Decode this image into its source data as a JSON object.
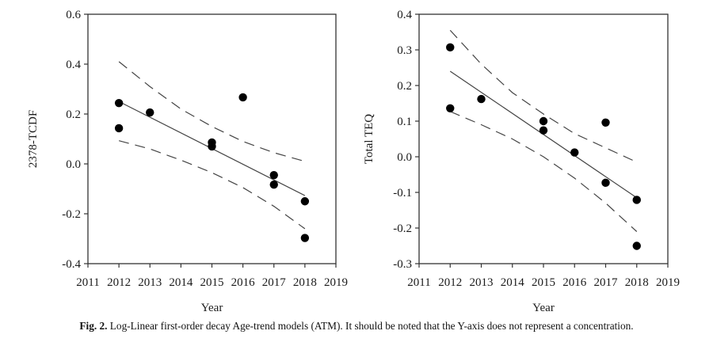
{
  "caption": {
    "label": "Fig. 2.",
    "text": " Log-Linear first-order decay Age-trend models (ATM). It should be noted that the Y-axis does not represent a concentration."
  },
  "chart_data": [
    {
      "type": "scatter",
      "title": "",
      "xlabel": "Year",
      "ylabel": "2378-TCDF",
      "xlim": [
        2011,
        2019
      ],
      "ylim": [
        -0.4,
        0.6
      ],
      "xticks": [
        2011,
        2012,
        2013,
        2014,
        2015,
        2016,
        2017,
        2018,
        2019
      ],
      "yticks": [
        -0.4,
        -0.2,
        0.0,
        0.2,
        0.4,
        0.6
      ],
      "ytick_labels": [
        "-0.4",
        "-0.2",
        "0.0",
        "0.2",
        "0.4",
        "0.6"
      ],
      "grid": false,
      "points": [
        {
          "x": 2012,
          "y": 0.244
        },
        {
          "x": 2012,
          "y": 0.143
        },
        {
          "x": 2013,
          "y": 0.206
        },
        {
          "x": 2015,
          "y": 0.086
        },
        {
          "x": 2015,
          "y": 0.07
        },
        {
          "x": 2016,
          "y": 0.267
        },
        {
          "x": 2017,
          "y": -0.045
        },
        {
          "x": 2017,
          "y": -0.083
        },
        {
          "x": 2018,
          "y": -0.15
        },
        {
          "x": 2018,
          "y": -0.297
        }
      ],
      "regression": {
        "x": [
          2012,
          2018
        ],
        "y": [
          0.25,
          -0.127
        ]
      },
      "ci_upper": {
        "x": [
          2012,
          2013,
          2014,
          2015,
          2016,
          2017,
          2018
        ],
        "y": [
          0.41,
          0.31,
          0.22,
          0.15,
          0.09,
          0.045,
          0.01
        ]
      },
      "ci_lower": {
        "x": [
          2012,
          2013,
          2014,
          2015,
          2016,
          2017,
          2018
        ],
        "y": [
          0.093,
          0.06,
          0.015,
          -0.035,
          -0.095,
          -0.17,
          -0.26
        ]
      }
    },
    {
      "type": "scatter",
      "title": "",
      "xlabel": "Year",
      "ylabel": "Total TEQ",
      "xlim": [
        2011,
        2019
      ],
      "ylim": [
        -0.3,
        0.4
      ],
      "xticks": [
        2011,
        2012,
        2013,
        2014,
        2015,
        2016,
        2017,
        2018,
        2019
      ],
      "yticks": [
        -0.3,
        -0.2,
        -0.1,
        0.0,
        0.1,
        0.2,
        0.3,
        0.4
      ],
      "ytick_labels": [
        "-0.3",
        "-0.2",
        "-0.1",
        "0.0",
        "0.1",
        "0.2",
        "0.3",
        "0.4"
      ],
      "grid": false,
      "points": [
        {
          "x": 2012,
          "y": 0.307
        },
        {
          "x": 2012,
          "y": 0.136
        },
        {
          "x": 2013,
          "y": 0.162
        },
        {
          "x": 2015,
          "y": 0.1
        },
        {
          "x": 2015,
          "y": 0.074
        },
        {
          "x": 2016,
          "y": 0.012
        },
        {
          "x": 2017,
          "y": 0.096
        },
        {
          "x": 2017,
          "y": -0.073
        },
        {
          "x": 2018,
          "y": -0.121
        },
        {
          "x": 2018,
          "y": -0.25
        }
      ],
      "regression": {
        "x": [
          2012,
          2018
        ],
        "y": [
          0.24,
          -0.115
        ]
      },
      "ci_upper": {
        "x": [
          2012,
          2013,
          2014,
          2015,
          2016,
          2017,
          2018
        ],
        "y": [
          0.355,
          0.26,
          0.18,
          0.12,
          0.065,
          0.025,
          -0.015
        ]
      },
      "ci_lower": {
        "x": [
          2012,
          2013,
          2014,
          2015,
          2016,
          2017,
          2018
        ],
        "y": [
          0.127,
          0.09,
          0.05,
          0.0,
          -0.06,
          -0.13,
          -0.21
        ]
      }
    }
  ]
}
